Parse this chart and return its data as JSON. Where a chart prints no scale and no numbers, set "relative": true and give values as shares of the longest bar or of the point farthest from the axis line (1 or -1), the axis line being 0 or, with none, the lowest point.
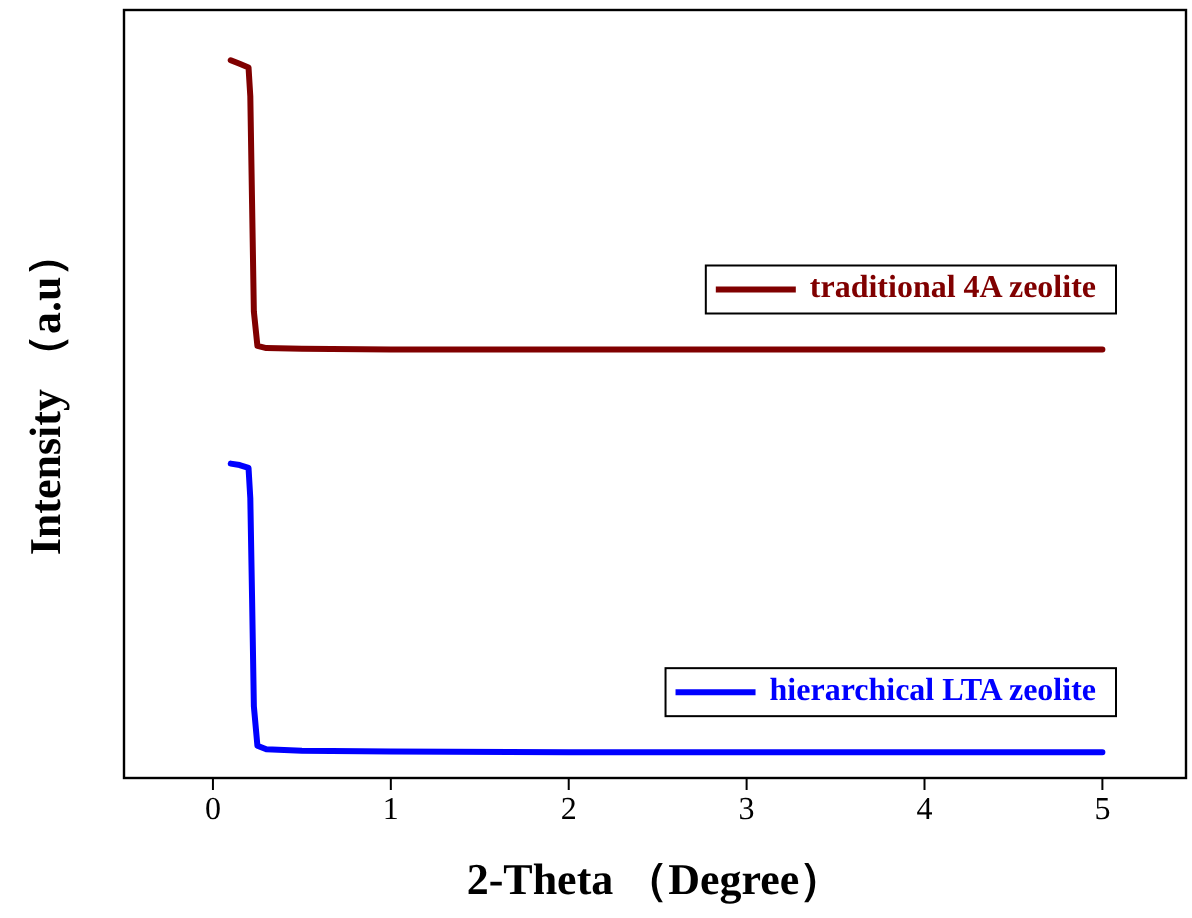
{
  "chart_data": {
    "type": "line",
    "relative": true,
    "xlabel": "2-Theta （Degree）",
    "ylabel": "Intensity （a.u）",
    "xlim": [
      -0.5,
      5.47
    ],
    "xticks": [
      0,
      1,
      2,
      3,
      4,
      5
    ],
    "legend": "right",
    "grid": false,
    "marker": "none",
    "line_style": "solid",
    "series": [
      {
        "name": "traditional 4A zeolite",
        "color": "#800000",
        "x": [
          0.1,
          0.15,
          0.2,
          0.21,
          0.22,
          0.23,
          0.25,
          0.3,
          0.5,
          1,
          2,
          3,
          4,
          5
        ],
        "values": [
          1,
          0.995,
          0.99,
          0.95,
          0.8,
          0.65,
          0.602,
          0.599,
          0.598,
          0.597,
          0.597,
          0.597,
          0.597,
          0.597
        ]
      },
      {
        "name": "hierarchical LTA zeolite",
        "color": "#0000ff",
        "x": [
          0.1,
          0.15,
          0.2,
          0.21,
          0.22,
          0.23,
          0.25,
          0.3,
          0.5,
          1,
          2,
          3,
          4,
          5
        ],
        "values": [
          0.438,
          0.436,
          0.432,
          0.39,
          0.25,
          0.1,
          0.045,
          0.04,
          0.038,
          0.037,
          0.036,
          0.036,
          0.036,
          0.036
        ]
      }
    ]
  }
}
